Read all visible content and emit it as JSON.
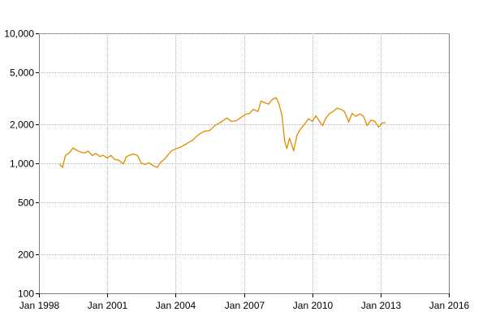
{
  "chart_data": {
    "type": "line",
    "title": "",
    "xlabel": "",
    "ylabel": "",
    "y_scale": "log",
    "ylim": [
      100,
      10000
    ],
    "xlim": [
      "1998-01-01",
      "2016-01-01"
    ],
    "grid": true,
    "legend": "none",
    "line_color": "#e08c00",
    "y_ticks": [
      {
        "value": 100,
        "label": "100"
      },
      {
        "value": 200,
        "label": "200"
      },
      {
        "value": 500,
        "label": "500"
      },
      {
        "value": 1000,
        "label": "1,000"
      },
      {
        "value": 2000,
        "label": "2,000"
      },
      {
        "value": 5000,
        "label": "5,000"
      },
      {
        "value": 10000,
        "label": "10,000"
      }
    ],
    "x_ticks": [
      {
        "value": "1998-01-01",
        "label": "Jan 1998"
      },
      {
        "value": "2001-01-01",
        "label": "Jan 2001"
      },
      {
        "value": "2004-01-01",
        "label": "Jan 2004"
      },
      {
        "value": "2007-01-01",
        "label": "Jan 2007"
      },
      {
        "value": "2010-01-01",
        "label": "Jan 2010"
      },
      {
        "value": "2013-01-01",
        "label": "Jan 2013"
      },
      {
        "value": "2016-01-01",
        "label": "Jan 2016"
      }
    ],
    "series": [
      {
        "x": [
          "1998-12-01",
          "1999-01-15",
          "1999-03-01",
          "1999-05-01",
          "1999-07-01",
          "1999-09-01",
          "1999-11-01",
          "2000-01-01",
          "2000-03-01",
          "2000-05-01",
          "2000-07-01",
          "2000-09-01",
          "2000-11-01",
          "2001-01-01",
          "2001-03-01",
          "2001-05-01",
          "2001-07-01",
          "2001-09-15",
          "2001-11-01",
          "2002-01-01",
          "2002-03-01",
          "2002-05-01",
          "2002-07-01",
          "2002-09-01",
          "2002-11-01",
          "2003-01-01",
          "2003-03-15",
          "2003-05-01",
          "2003-07-01",
          "2003-09-01",
          "2003-11-01",
          "2004-01-01",
          "2004-04-01",
          "2004-07-01",
          "2004-10-01",
          "2005-01-01",
          "2005-04-01",
          "2005-07-01",
          "2005-10-01",
          "2006-01-01",
          "2006-04-01",
          "2006-06-15",
          "2006-09-01",
          "2006-12-01",
          "2007-02-01",
          "2007-04-01",
          "2007-06-01",
          "2007-08-15",
          "2007-10-01",
          "2007-12-01",
          "2008-02-01",
          "2008-04-01",
          "2008-06-01",
          "2008-07-15",
          "2008-09-01",
          "2008-10-15",
          "2008-11-20",
          "2009-01-01",
          "2009-03-09",
          "2009-05-01",
          "2009-07-01",
          "2009-09-01",
          "2009-11-01",
          "2010-01-01",
          "2010-03-01",
          "2010-05-01",
          "2010-06-15",
          "2010-08-01",
          "2010-10-01",
          "2010-12-01",
          "2011-02-01",
          "2011-04-01",
          "2011-06-01",
          "2011-08-10",
          "2011-10-01",
          "2011-12-01",
          "2012-02-01",
          "2012-04-01",
          "2012-06-01",
          "2012-08-01",
          "2012-10-01",
          "2012-12-01",
          "2013-02-01",
          "2013-03-15"
        ],
        "values": [
          980,
          930,
          1150,
          1200,
          1310,
          1260,
          1220,
          1200,
          1240,
          1150,
          1190,
          1130,
          1150,
          1100,
          1150,
          1070,
          1060,
          990,
          1120,
          1160,
          1180,
          1150,
          1000,
          980,
          1010,
          960,
          930,
          1010,
          1070,
          1160,
          1250,
          1290,
          1340,
          1420,
          1510,
          1660,
          1760,
          1790,
          1960,
          2080,
          2230,
          2100,
          2130,
          2280,
          2390,
          2420,
          2600,
          2500,
          3010,
          2920,
          2850,
          3100,
          3200,
          2880,
          2350,
          1490,
          1300,
          1560,
          1250,
          1650,
          1850,
          2000,
          2200,
          2100,
          2320,
          2090,
          1950,
          2200,
          2410,
          2500,
          2650,
          2620,
          2500,
          2080,
          2420,
          2300,
          2400,
          2300,
          1950,
          2150,
          2100,
          1900,
          2050,
          2050
        ]
      }
    ]
  }
}
